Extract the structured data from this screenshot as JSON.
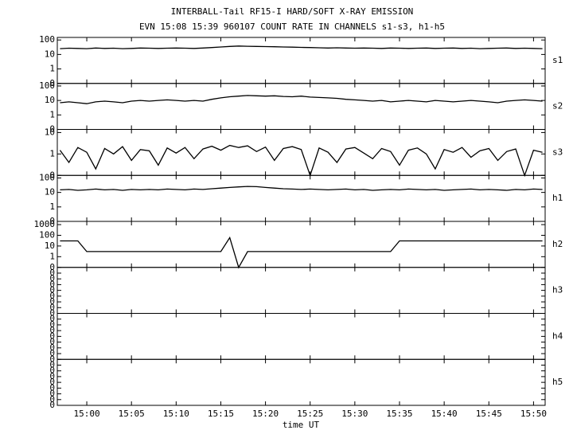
{
  "chart_data": {
    "type": "line",
    "title": "INTERBALL-Tail RF15-I HARD/SOFT X-RAY EMISSION",
    "subtitle": "EVN 15:08 15:39 960107  COUNT RATE IN CHANNELS s1-s3, h1-h5",
    "xlabel": "time UT",
    "xlim": [
      896.7,
      951.3
    ],
    "xticks": [
      {
        "value": 900,
        "label": "15:00"
      },
      {
        "value": 905,
        "label": "15:05"
      },
      {
        "value": 910,
        "label": "15:10"
      },
      {
        "value": 915,
        "label": "15:15"
      },
      {
        "value": 920,
        "label": "15:20"
      },
      {
        "value": 925,
        "label": "15:25"
      },
      {
        "value": 930,
        "label": "15:30"
      },
      {
        "value": 935,
        "label": "15:35"
      },
      {
        "value": 940,
        "label": "15:40"
      },
      {
        "value": 945,
        "label": "15:45"
      },
      {
        "value": 950,
        "label": "15:50"
      }
    ],
    "x": [
      897,
      898,
      899,
      900,
      901,
      902,
      903,
      904,
      905,
      906,
      907,
      908,
      909,
      910,
      911,
      912,
      913,
      914,
      915,
      916,
      917,
      918,
      919,
      920,
      921,
      922,
      923,
      924,
      925,
      926,
      927,
      928,
      929,
      930,
      931,
      932,
      933,
      934,
      935,
      936,
      937,
      938,
      939,
      940,
      941,
      942,
      943,
      944,
      945,
      946,
      947,
      948,
      949,
      950,
      951
    ],
    "series": [
      {
        "name": "s1",
        "color": "#000000",
        "log": true,
        "ylim": [
          0.1,
          150
        ],
        "yticks": [
          {
            "value": 0.1,
            "label": "0"
          },
          1,
          10,
          100
        ],
        "values": [
          25,
          27,
          26,
          25,
          28,
          26,
          27,
          25,
          26,
          28,
          27,
          26,
          27,
          28,
          27,
          26,
          28,
          30,
          33,
          36,
          38,
          37,
          36,
          35,
          34,
          33,
          32,
          31,
          30,
          29,
          28,
          29,
          28,
          27,
          28,
          27,
          26,
          28,
          27,
          26,
          27,
          28,
          26,
          27,
          28,
          26,
          27,
          25,
          26,
          27,
          28,
          26,
          27,
          26,
          25
        ]
      },
      {
        "name": "s2",
        "color": "#000000",
        "log": true,
        "ylim": [
          0.1,
          150
        ],
        "yticks": [
          {
            "value": 0.1,
            "label": "0"
          },
          1,
          10,
          100
        ],
        "values": [
          7,
          8,
          7,
          6,
          8,
          9,
          8,
          7,
          9,
          10,
          9,
          10,
          11,
          10,
          9,
          10,
          9,
          12,
          15,
          18,
          20,
          22,
          21,
          20,
          21,
          19,
          18,
          20,
          17,
          16,
          15,
          14,
          12,
          11,
          10,
          9,
          10,
          8,
          9,
          10,
          9,
          8,
          10,
          9,
          8,
          9,
          10,
          9,
          8,
          7,
          9,
          10,
          11,
          10,
          9
        ]
      },
      {
        "name": "s3",
        "color": "#000000",
        "log": true,
        "ylim": [
          0.1,
          14
        ],
        "yticks": [
          {
            "value": 0.1,
            "label": "0"
          },
          1,
          10
        ],
        "values": [
          1.5,
          0.4,
          2,
          1.2,
          0.2,
          1.8,
          1,
          2.2,
          0.5,
          1.6,
          1.4,
          0.3,
          1.9,
          1.1,
          2,
          0.6,
          1.7,
          2.3,
          1.5,
          2.5,
          2,
          2.4,
          1.3,
          2.1,
          0.5,
          1.8,
          2.2,
          1.6,
          0.1,
          1.9,
          1.2,
          0.4,
          1.7,
          2,
          1.1,
          0.6,
          1.8,
          1.3,
          0.3,
          1.5,
          1.9,
          1,
          0.2,
          1.6,
          1.2,
          2,
          0.7,
          1.4,
          1.8,
          0.5,
          1.3,
          1.7,
          0.1,
          1.5,
          1.2
        ]
      },
      {
        "name": "h1",
        "color": "#000000",
        "log": true,
        "ylim": [
          0.1,
          150
        ],
        "yticks": [
          {
            "value": 0.1,
            "label": "0"
          },
          1,
          10,
          100
        ],
        "values": [
          15,
          16,
          14,
          15,
          17,
          15,
          16,
          14,
          16,
          15,
          16,
          15,
          17,
          16,
          15,
          17,
          16,
          18,
          20,
          22,
          24,
          26,
          25,
          22,
          20,
          18,
          17,
          16,
          17,
          16,
          15,
          16,
          17,
          15,
          16,
          14,
          15,
          16,
          15,
          17,
          16,
          15,
          16,
          14,
          15,
          16,
          17,
          15,
          16,
          15,
          14,
          16,
          15,
          17,
          16
        ]
      },
      {
        "name": "h2",
        "color": "#000000",
        "log": true,
        "ylim": [
          0.1,
          2000
        ],
        "yticks": [
          {
            "value": 0.1,
            "label": "0"
          },
          1,
          10,
          100,
          1000
        ],
        "values": [
          30,
          30,
          30,
          3,
          3,
          3,
          3,
          3,
          3,
          3,
          3,
          3,
          3,
          3,
          3,
          3,
          3,
          3,
          3,
          60,
          0.1,
          3,
          3,
          3,
          3,
          3,
          3,
          3,
          3,
          3,
          3,
          3,
          3,
          3,
          3,
          3,
          3,
          3,
          30,
          30,
          30,
          30,
          30,
          30,
          30,
          30,
          30,
          30,
          30,
          30,
          30,
          30,
          30,
          30,
          30
        ]
      },
      {
        "name": "h3",
        "color": "#000000",
        "log": false,
        "ylim": [
          0,
          0.0008
        ],
        "yticks": [
          0,
          {
            "value": 0.0001,
            "label": "0"
          },
          {
            "value": 0.0002,
            "label": "0"
          },
          {
            "value": 0.0003,
            "label": "0"
          },
          {
            "value": 0.0004,
            "label": "0"
          },
          {
            "value": 0.0005,
            "label": "0"
          },
          {
            "value": 0.0006,
            "label": "0"
          },
          {
            "value": 0.0007,
            "label": "0"
          }
        ]
      },
      {
        "name": "h4",
        "color": "#000000",
        "log": false,
        "ylim": [
          0,
          0.0008
        ],
        "yticks": [
          0,
          {
            "value": 0.0001,
            "label": "0"
          },
          {
            "value": 0.0002,
            "label": "0"
          },
          {
            "value": 0.0003,
            "label": "0"
          },
          {
            "value": 0.0004,
            "label": "0"
          },
          {
            "value": 0.0005,
            "label": "0"
          },
          {
            "value": 0.0006,
            "label": "0"
          },
          {
            "value": 0.0007,
            "label": "0"
          }
        ]
      },
      {
        "name": "h5",
        "color": "#000000",
        "log": false,
        "ylim": [
          0,
          0.0008
        ],
        "yticks": [
          0,
          {
            "value": 0.0001,
            "label": "0"
          },
          {
            "value": 0.0002,
            "label": "0"
          },
          {
            "value": 0.0003,
            "label": "0"
          },
          {
            "value": 0.0004,
            "label": "0"
          },
          {
            "value": 0.0005,
            "label": "0"
          },
          {
            "value": 0.0006,
            "label": "0"
          },
          {
            "value": 0.0007,
            "label": "0"
          }
        ]
      }
    ]
  }
}
